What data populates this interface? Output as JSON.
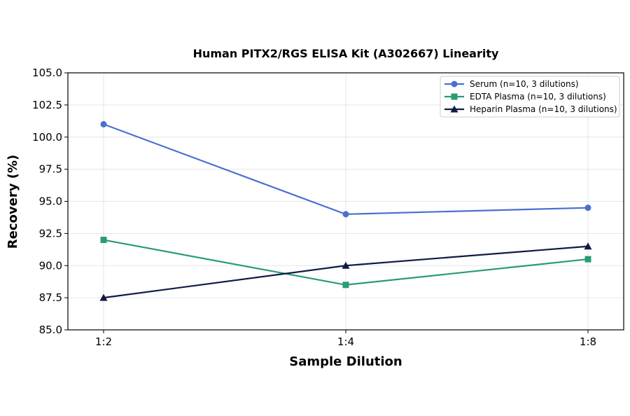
{
  "chart_data": {
    "type": "line",
    "title": "Human PITX2/RGS ELISA Kit (A302667) Linearity",
    "xlabel": "Sample Dilution",
    "ylabel": "Recovery (%)",
    "categories": [
      "1:2",
      "1:4",
      "1:8"
    ],
    "ylim": [
      85.0,
      105.0
    ],
    "yticks": [
      "85.0",
      "87.5",
      "90.0",
      "92.5",
      "95.0",
      "97.5",
      "100.0",
      "102.5",
      "105.0"
    ],
    "grid": true,
    "legend_position": "top-right",
    "series": [
      {
        "name": "Serum (n=10, 3 dilutions)",
        "values": [
          101.0,
          94.0,
          94.5
        ],
        "color": "#4c6fcf",
        "marker": "circle"
      },
      {
        "name": "EDTA Plasma (n=10, 3 dilutions)",
        "values": [
          92.0,
          88.5,
          90.5
        ],
        "color": "#2a9b76",
        "marker": "square"
      },
      {
        "name": "Heparin Plasma (n=10, 3 dilutions)",
        "values": [
          87.5,
          90.0,
          91.5
        ],
        "color": "#111a44",
        "marker": "triangle"
      }
    ]
  }
}
